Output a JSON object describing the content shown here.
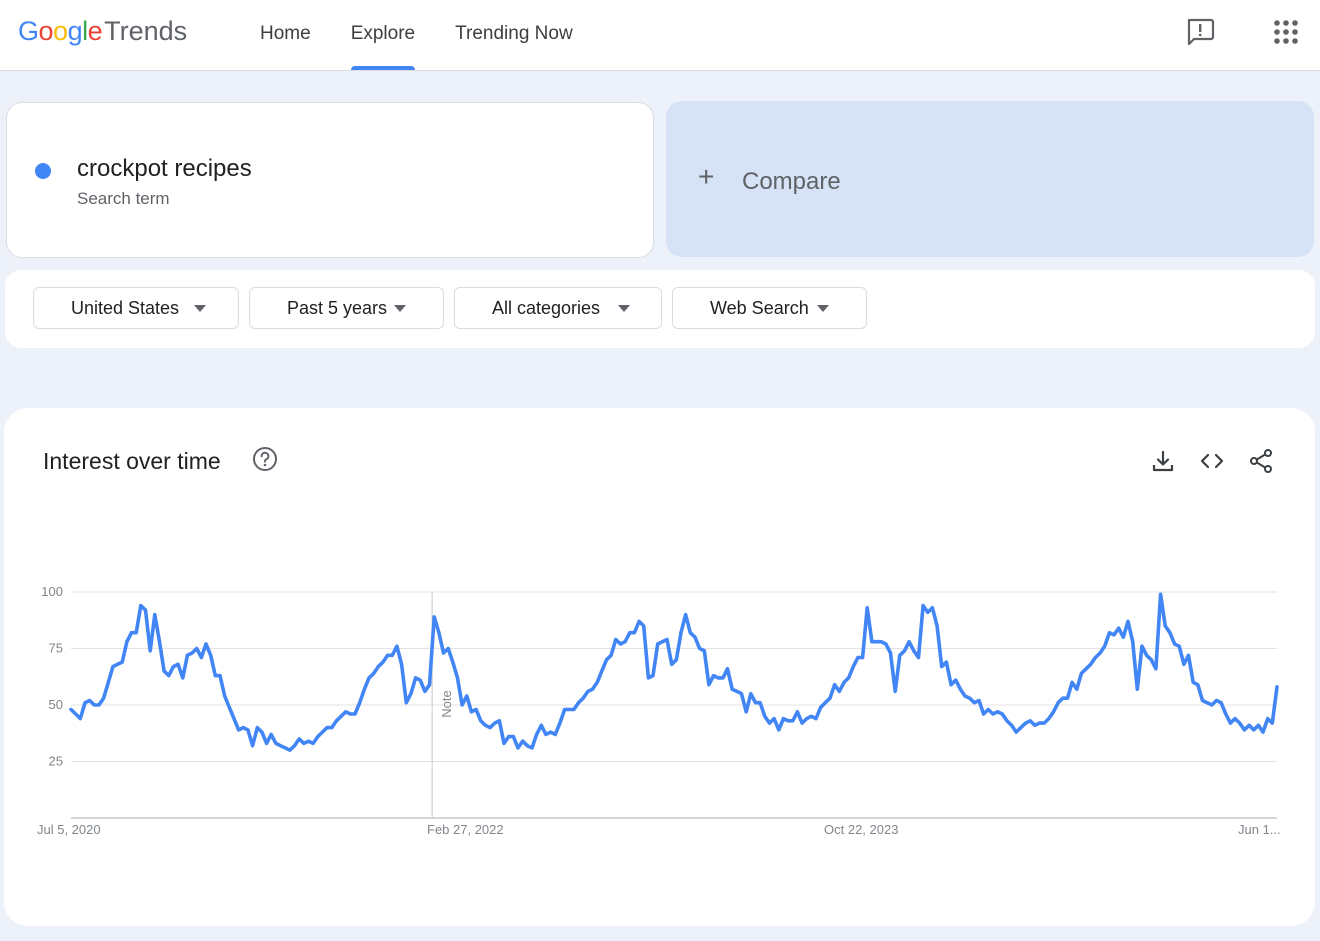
{
  "header": {
    "logo_google": "Google",
    "logo_trends": "Trends",
    "nav": [
      {
        "label": "Home",
        "active": false
      },
      {
        "label": "Explore",
        "active": true
      },
      {
        "label": "Trending Now",
        "active": false
      }
    ],
    "icons": [
      "feedback-icon",
      "apps-grid-icon"
    ]
  },
  "search_term": {
    "name": "crockpot recipes",
    "type": "Search term",
    "color": "#4285f4"
  },
  "compare": {
    "label": "Compare"
  },
  "filters": [
    {
      "label": "United States"
    },
    {
      "label": "Past 5 years"
    },
    {
      "label": "All categories"
    },
    {
      "label": "Web Search"
    }
  ],
  "chart_card": {
    "title": "Interest over time",
    "icons": [
      "help-icon",
      "download-icon",
      "embed-code-icon",
      "share-icon"
    ]
  },
  "chart_data": {
    "type": "line",
    "title": "",
    "xlabel": "",
    "ylabel": "",
    "ylim": [
      0,
      100
    ],
    "y_ticks": [
      25,
      50,
      75,
      100
    ],
    "x_tick_labels": [
      "Jul 5, 2020",
      "Feb 27, 2022",
      "Oct 22, 2023",
      "Jun 1..."
    ],
    "x_range": [
      "2020-07-05",
      "2025-06-29"
    ],
    "note_marker": {
      "date": "2022-01-01",
      "label": "Note"
    },
    "grid": true,
    "legend": "none",
    "series": [
      {
        "color": "#4285f4",
        "values": [
          48,
          46,
          44,
          51,
          52,
          50,
          50,
          53,
          60,
          67,
          68,
          69,
          78,
          82,
          82,
          94,
          92,
          74,
          90,
          78,
          65,
          63,
          67,
          68,
          62,
          72,
          73,
          75,
          71,
          77,
          72,
          63,
          63,
          54,
          49,
          44,
          39,
          40,
          39,
          32,
          40,
          38,
          33,
          37,
          33,
          32,
          31,
          30,
          32,
          35,
          33,
          34,
          33,
          36,
          38,
          40,
          40,
          43,
          45,
          47,
          46,
          46,
          51,
          57,
          62,
          64,
          67,
          69,
          72,
          72,
          76,
          68,
          51,
          55,
          62,
          61,
          56,
          59,
          89,
          82,
          73,
          75,
          69,
          62,
          50,
          54,
          47,
          48,
          43,
          41,
          40,
          42,
          43,
          33,
          36,
          36,
          31,
          34,
          32,
          31,
          37,
          41,
          37,
          38,
          37,
          42,
          48,
          48,
          48,
          51,
          53,
          56,
          57,
          60,
          65,
          70,
          72,
          79,
          77,
          78,
          82,
          82,
          87,
          85,
          62,
          63,
          77,
          78,
          79,
          68,
          70,
          82,
          90,
          82,
          80,
          75,
          74,
          59,
          63,
          62,
          62,
          66,
          57,
          56,
          55,
          47,
          55,
          51,
          51,
          45,
          42,
          44,
          39,
          44,
          43,
          43,
          47,
          42,
          44,
          45,
          44,
          49,
          51,
          53,
          59,
          56,
          60,
          62,
          67,
          71,
          71,
          93,
          78,
          78,
          78,
          77,
          73,
          56,
          72,
          74,
          78,
          74,
          71,
          94,
          91,
          93,
          85,
          67,
          69,
          59,
          61,
          57,
          54,
          53,
          51,
          52,
          46,
          48,
          46,
          47,
          46,
          43,
          41,
          38,
          40,
          42,
          43,
          41,
          42,
          42,
          44,
          47,
          51,
          53,
          53,
          60,
          57,
          64,
          66,
          68,
          71,
          73,
          76,
          82,
          81,
          84,
          80,
          87,
          78,
          57,
          76,
          72,
          70,
          66,
          99,
          85,
          82,
          77,
          76,
          68,
          72,
          60,
          59,
          52,
          51,
          50,
          52,
          51,
          46,
          42,
          44,
          42,
          39,
          41,
          39,
          41,
          38,
          44,
          42,
          58
        ]
      }
    ]
  }
}
